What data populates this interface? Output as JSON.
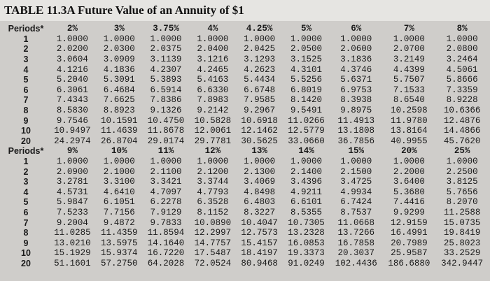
{
  "title": "TABLE 11.3A Future Value of an Annuity of $1",
  "blocks": [
    {
      "header": [
        "Periods*",
        "2%",
        "3%",
        "3.75%",
        "4%",
        "4.25%",
        "5%",
        "6%",
        "7%",
        "8%"
      ],
      "rows": [
        [
          "1",
          "1.0000",
          "1.0000",
          "1.0000",
          "1.0000",
          "1.0000",
          "1.0000",
          "1.0000",
          "1.0000",
          "1.0000"
        ],
        [
          "2",
          "2.0200",
          "2.0300",
          "2.0375",
          "2.0400",
          "2.0425",
          "2.0500",
          "2.0600",
          "2.0700",
          "2.0800"
        ],
        [
          "3",
          "3.0604",
          "3.0909",
          "3.1139",
          "3.1216",
          "3.1293",
          "3.1525",
          "3.1836",
          "3.2149",
          "3.2464"
        ],
        [
          "4",
          "4.1216",
          "4.1836",
          "4.2307",
          "4.2465",
          "4.2623",
          "4.3101",
          "4.3746",
          "4.4399",
          "4.5061"
        ],
        [
          "5",
          "5.2040",
          "5.3091",
          "5.3893",
          "5.4163",
          "5.4434",
          "5.5256",
          "5.6371",
          "5.7507",
          "5.8666"
        ],
        [
          "6",
          "6.3061",
          "6.4684",
          "6.5914",
          "6.6330",
          "6.6748",
          "6.8019",
          "6.9753",
          "7.1533",
          "7.3359"
        ],
        [
          "7",
          "7.4343",
          "7.6625",
          "7.8386",
          "7.8983",
          "7.9585",
          "8.1420",
          "8.3938",
          "8.6540",
          "8.9228"
        ],
        [
          "8",
          "8.5830",
          "8.8923",
          "9.1326",
          "9.2142",
          "9.2967",
          "9.5491",
          "9.8975",
          "10.2598",
          "10.6366"
        ],
        [
          "9",
          "9.7546",
          "10.1591",
          "10.4750",
          "10.5828",
          "10.6918",
          "11.0266",
          "11.4913",
          "11.9780",
          "12.4876"
        ],
        [
          "10",
          "10.9497",
          "11.4639",
          "11.8678",
          "12.0061",
          "12.1462",
          "12.5779",
          "13.1808",
          "13.8164",
          "14.4866"
        ],
        [
          "20",
          "24.2974",
          "26.8704",
          "29.0174",
          "29.7781",
          "30.5625",
          "33.0660",
          "36.7856",
          "40.9955",
          "45.7620"
        ]
      ]
    },
    {
      "header": [
        "Periods*",
        "9%",
        "10%",
        "11%",
        "12%",
        "13%",
        "14%",
        "15%",
        "20%",
        "25%"
      ],
      "rows": [
        [
          "1",
          "1.0000",
          "1.0000",
          "1.0000",
          "1.0000",
          "1.0000",
          "1.0000",
          "1.0000",
          "1.0000",
          "1.0000"
        ],
        [
          "2",
          "2.0900",
          "2.1000",
          "2.1100",
          "2.1200",
          "2.1300",
          "2.1400",
          "2.1500",
          "2.2000",
          "2.2500"
        ],
        [
          "3",
          "3.2781",
          "3.3100",
          "3.3421",
          "3.3744",
          "3.4069",
          "3.4396",
          "3.4725",
          "3.6400",
          "3.8125"
        ],
        [
          "4",
          "4.5731",
          "4.6410",
          "4.7097",
          "4.7793",
          "4.8498",
          "4.9211",
          "4.9934",
          "5.3680",
          "5.7656"
        ],
        [
          "5",
          "5.9847",
          "6.1051",
          "6.2278",
          "6.3528",
          "6.4803",
          "6.6101",
          "6.7424",
          "7.4416",
          "8.2070"
        ],
        [
          "6",
          "7.5233",
          "7.7156",
          "7.9129",
          "8.1152",
          "8.3227",
          "8.5355",
          "8.7537",
          "9.9299",
          "11.2588"
        ],
        [
          "7",
          "9.2004",
          "9.4872",
          "9.7833",
          "10.0890",
          "10.4047",
          "10.7305",
          "11.0668",
          "12.9159",
          "15.0735"
        ],
        [
          "8",
          "11.0285",
          "11.4359",
          "11.8594",
          "12.2997",
          "12.7573",
          "13.2328",
          "13.7266",
          "16.4991",
          "19.8419"
        ],
        [
          "9",
          "13.0210",
          "13.5975",
          "14.1640",
          "14.7757",
          "15.4157",
          "16.0853",
          "16.7858",
          "20.7989",
          "25.8023"
        ],
        [
          "10",
          "15.1929",
          "15.9374",
          "16.7220",
          "17.5487",
          "18.4197",
          "19.3373",
          "20.3037",
          "25.9587",
          "33.2529"
        ],
        [
          "20",
          "51.1601",
          "57.2750",
          "64.2028",
          "72.0524",
          "80.9468",
          "91.0249",
          "102.4436",
          "186.6880",
          "342.9447"
        ]
      ]
    }
  ]
}
